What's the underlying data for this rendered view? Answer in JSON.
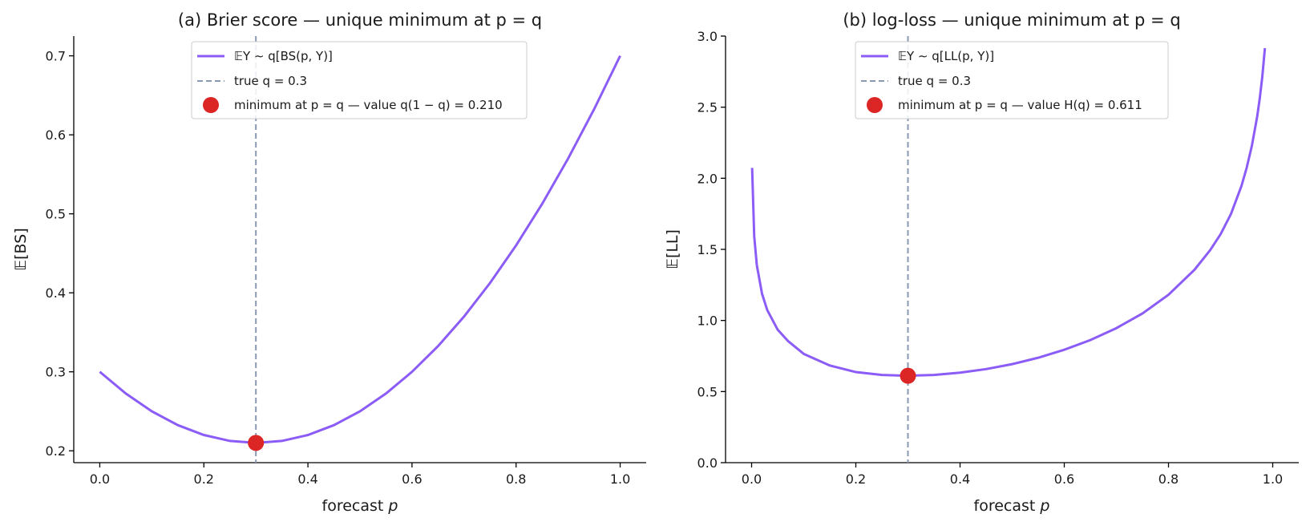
{
  "colors": {
    "curve": "#8b5cf6",
    "true_q_line": "#8a99b3",
    "minimum_marker": "#dc2626",
    "axis": "#000000",
    "legend_border": "#cccccc"
  },
  "chart_data": [
    {
      "type": "line",
      "title": "(a) Brier score — unique minimum at p = q",
      "xlabel_text": "forecast ",
      "xlabel_var": "p",
      "ylabel": "𝔼[BS]",
      "xlim": [
        -0.05,
        1.05
      ],
      "ylim": [
        0.185,
        0.725
      ],
      "xticks": [
        0.0,
        0.2,
        0.4,
        0.6,
        0.8,
        1.0
      ],
      "xtick_labels": [
        "0.0",
        "0.2",
        "0.4",
        "0.6",
        "0.8",
        "1.0"
      ],
      "yticks": [
        0.2,
        0.3,
        0.4,
        0.5,
        0.6,
        0.7
      ],
      "ytick_labels": [
        "0.2",
        "0.3",
        "0.4",
        "0.5",
        "0.6",
        "0.7"
      ],
      "grid": false,
      "legend_position": "upper-center",
      "q": 0.3,
      "series": [
        {
          "kind": "curve",
          "x": [
            0.0,
            0.05,
            0.1,
            0.15,
            0.2,
            0.25,
            0.3,
            0.35,
            0.4,
            0.45,
            0.5,
            0.55,
            0.6,
            0.65,
            0.7,
            0.75,
            0.8,
            0.85,
            0.9,
            0.95,
            1.0
          ],
          "y": [
            0.3,
            0.2725,
            0.25,
            0.2325,
            0.22,
            0.2125,
            0.21,
            0.2125,
            0.22,
            0.2325,
            0.25,
            0.2725,
            0.3,
            0.3325,
            0.37,
            0.4125,
            0.46,
            0.5125,
            0.57,
            0.6325,
            0.7
          ]
        },
        {
          "kind": "vline",
          "x": 0.3
        },
        {
          "kind": "point",
          "x": 0.3,
          "y": 0.21
        }
      ],
      "legend": [
        {
          "kind": "curve",
          "label": "𝔼Y ∼ q[BS(p, Y)]"
        },
        {
          "kind": "vline",
          "label": "true q = 0.3"
        },
        {
          "kind": "point",
          "label": "minimum at p = q — value q(1 − q) = 0.210"
        }
      ]
    },
    {
      "type": "line",
      "title": "(b) log-loss — unique minimum at p = q",
      "xlabel_text": "forecast ",
      "xlabel_var": "p",
      "ylabel": "𝔼[LL]",
      "xlim": [
        -0.05,
        1.05
      ],
      "ylim": [
        0.0,
        3.0
      ],
      "xticks": [
        0.0,
        0.2,
        0.4,
        0.6,
        0.8,
        1.0
      ],
      "xtick_labels": [
        "0.0",
        "0.2",
        "0.4",
        "0.6",
        "0.8",
        "1.0"
      ],
      "yticks": [
        0.0,
        0.5,
        1.0,
        1.5,
        2.0,
        2.5,
        3.0
      ],
      "ytick_labels": [
        "0.0",
        "0.5",
        "1.0",
        "1.5",
        "2.0",
        "2.5",
        "3.0"
      ],
      "grid": false,
      "legend_position": "upper-center",
      "q": 0.3,
      "series": [
        {
          "kind": "curve",
          "x": [
            0.001,
            0.005,
            0.01,
            0.02,
            0.03,
            0.05,
            0.07,
            0.1,
            0.15,
            0.2,
            0.25,
            0.3,
            0.35,
            0.4,
            0.45,
            0.5,
            0.55,
            0.6,
            0.65,
            0.7,
            0.75,
            0.8,
            0.85,
            0.88,
            0.9,
            0.92,
            0.94,
            0.95,
            0.96,
            0.97,
            0.975,
            0.98,
            0.985
          ],
          "y": [
            2.073,
            1.592,
            1.389,
            1.188,
            1.073,
            0.935,
            0.855,
            0.765,
            0.683,
            0.637,
            0.617,
            0.611,
            0.617,
            0.633,
            0.658,
            0.693,
            0.738,
            0.794,
            0.862,
            0.946,
            1.049,
            1.181,
            1.357,
            1.495,
            1.607,
            1.75,
            1.946,
            2.073,
            2.229,
            2.43,
            2.558,
            2.714,
            2.915
          ]
        },
        {
          "kind": "vline",
          "x": 0.3
        },
        {
          "kind": "point",
          "x": 0.3,
          "y": 0.611
        }
      ],
      "legend": [
        {
          "kind": "curve",
          "label": "𝔼Y ∼ q[LL(p, Y)]"
        },
        {
          "kind": "vline",
          "label": "true q = 0.3"
        },
        {
          "kind": "point",
          "label": "minimum at p = q — value H(q) = 0.611"
        }
      ]
    }
  ]
}
